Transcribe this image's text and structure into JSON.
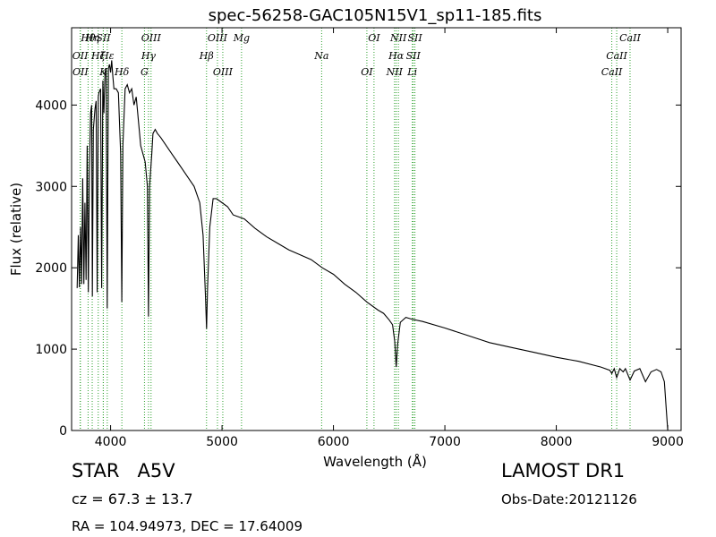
{
  "chart_data": {
    "type": "line",
    "title": "spec-56258-GAC105N15V1_sp11-185.fits",
    "xlabel": "Wavelength (Å)",
    "ylabel": "Flux (relative)",
    "xlim": [
      3650,
      9120
    ],
    "ylim": [
      0,
      4950
    ],
    "xticks": [
      4000,
      5000,
      6000,
      7000,
      8000,
      9000
    ],
    "yticks": [
      0,
      1000,
      2000,
      3000,
      4000
    ],
    "grid": false,
    "line_color": "#000000",
    "marker_color": "#2ca02c",
    "series": [
      {
        "x": [
          3700,
          3710,
          3720,
          3730,
          3740,
          3750,
          3760,
          3770,
          3780,
          3790,
          3800,
          3810,
          3820,
          3830,
          3836,
          3845,
          3860,
          3870,
          3880,
          3889,
          3895,
          3910,
          3920,
          3930,
          3940,
          3950,
          3960,
          3970,
          3980,
          3990,
          4000,
          4010,
          4020,
          4030,
          4050,
          4070,
          4090,
          4101,
          4110,
          4130,
          4150,
          4170,
          4190,
          4210,
          4230,
          4250,
          4270,
          4290,
          4310,
          4330,
          4340,
          4350,
          4370,
          4380,
          4400,
          4420,
          4450,
          4500,
          4550,
          4600,
          4650,
          4700,
          4750,
          4800,
          4830,
          4850,
          4861,
          4870,
          4890,
          4920,
          4950,
          5000,
          5050,
          5100,
          5200,
          5300,
          5400,
          5500,
          5600,
          5700,
          5800,
          5900,
          6000,
          6100,
          6200,
          6300,
          6400,
          6450,
          6500,
          6530,
          6550,
          6563,
          6575,
          6600,
          6650,
          6700,
          6800,
          7000,
          7200,
          7400,
          7600,
          7800,
          8000,
          8200,
          8400,
          8480,
          8498,
          8520,
          8542,
          8570,
          8600,
          8620,
          8662,
          8700,
          8750,
          8800,
          8850,
          8900,
          8940,
          8970,
          8990,
          9000
        ],
        "values": [
          1750,
          2400,
          1760,
          2500,
          1800,
          3100,
          1800,
          2800,
          1850,
          3500,
          1700,
          3200,
          3900,
          4000,
          1650,
          3700,
          3950,
          4050,
          1700,
          4100,
          4150,
          4200,
          1750,
          4300,
          3900,
          4400,
          4450,
          1500,
          4450,
          4500,
          4400,
          4550,
          4350,
          4200,
          4200,
          4150,
          3400,
          1580,
          3500,
          4200,
          4250,
          4150,
          4200,
          4000,
          4100,
          3800,
          3500,
          3400,
          3300,
          3000,
          1400,
          3000,
          3400,
          3650,
          3700,
          3650,
          3600,
          3500,
          3400,
          3300,
          3200,
          3100,
          3000,
          2800,
          2400,
          1700,
          1250,
          1750,
          2500,
          2850,
          2850,
          2800,
          2750,
          2650,
          2600,
          2480,
          2380,
          2300,
          2220,
          2160,
          2100,
          2000,
          1920,
          1800,
          1700,
          1580,
          1480,
          1440,
          1360,
          1300,
          1100,
          780,
          1050,
          1330,
          1390,
          1370,
          1340,
          1260,
          1170,
          1080,
          1020,
          960,
          900,
          850,
          780,
          740,
          700,
          760,
          650,
          760,
          720,
          760,
          620,
          730,
          760,
          600,
          720,
          750,
          720,
          600,
          200,
          0
        ]
      }
    ],
    "lines": [
      {
        "label": "Hθ",
        "x": 3798
      },
      {
        "label": "OII",
        "x": 3727
      },
      {
        "label": "OII",
        "x": 3729
      },
      {
        "label": "Hη",
        "x": 3835
      },
      {
        "label": "Hζ",
        "x": 3889
      },
      {
        "label": "K",
        "x": 3934
      },
      {
        "label": "SII",
        "x": 3935
      },
      {
        "label": "Hε",
        "x": 3970
      },
      {
        "label": "Hδ",
        "x": 4101
      },
      {
        "label": "OIII",
        "x": 4363
      },
      {
        "label": "Hγ",
        "x": 4340
      },
      {
        "label": "G",
        "x": 4304
      },
      {
        "label": "OIII",
        "x": 4959
      },
      {
        "label": "Hβ",
        "x": 4861
      },
      {
        "label": "OIII",
        "x": 5007
      },
      {
        "label": "Mg",
        "x": 5175
      },
      {
        "label": "Na",
        "x": 5894
      },
      {
        "label": "OI",
        "x": 6300
      },
      {
        "label": "OI",
        "x": 6364
      },
      {
        "label": "Hα",
        "x": 6563
      },
      {
        "label": "NII",
        "x": 6548
      },
      {
        "label": "NII",
        "x": 6583
      },
      {
        "label": "SII",
        "x": 6716
      },
      {
        "label": "Li",
        "x": 6708
      },
      {
        "label": "SII",
        "x": 6731
      },
      {
        "label": "CaII",
        "x": 8542
      },
      {
        "label": "CaII",
        "x": 8498
      },
      {
        "label": "CaII",
        "x": 8662
      }
    ]
  },
  "info": {
    "class": "STAR",
    "subclass": "A5V",
    "cz": "cz = 67.3 ± 13.7",
    "radec": "RA = 104.94973, DEC = 17.64009",
    "survey": "LAMOST DR1",
    "obsdate": "Obs-Date:20121126"
  }
}
